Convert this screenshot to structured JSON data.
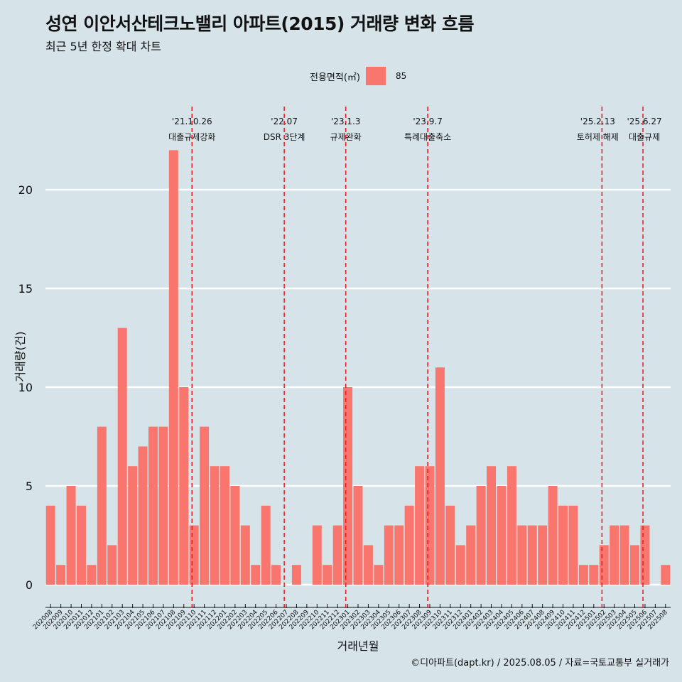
{
  "title": "성연 이안서산테크노밸리 아파트(2015) 거래량 변화 흐름",
  "subtitle": "최근 5년 한정 확대 차트",
  "legend": {
    "title": "전용면적(㎡)",
    "item": "85"
  },
  "source": "©디아파트(dapt.kr) / 2025.08.05 / 자료=국토교통부 실거래가",
  "chart_data": {
    "type": "bar",
    "title": "성연 이안서산테크노밸리 아파트(2015) 거래량 변화 흐름",
    "xlabel": "거래년월",
    "ylabel": "거래량(건)",
    "ylim": [
      0,
      22
    ],
    "yticks": [
      0,
      5,
      10,
      15,
      20
    ],
    "grid": true,
    "legend_position": "top",
    "bar_color": "#f8766d",
    "series": [
      {
        "name": "85"
      }
    ],
    "categories": [
      "202008",
      "202009",
      "202010",
      "202011",
      "202012",
      "202101",
      "202102",
      "202103",
      "202104",
      "202105",
      "202106",
      "202107",
      "202108",
      "202109",
      "202110",
      "202111",
      "202112",
      "202201",
      "202202",
      "202203",
      "202204",
      "202205",
      "202206",
      "202207",
      "202208",
      "202209",
      "202210",
      "202211",
      "202212",
      "202301",
      "202302",
      "202303",
      "202304",
      "202305",
      "202306",
      "202307",
      "202308",
      "202309",
      "202310",
      "202311",
      "202312",
      "202401",
      "202402",
      "202403",
      "202404",
      "202405",
      "202406",
      "202407",
      "202408",
      "202409",
      "202410",
      "202411",
      "202412",
      "202501",
      "202502",
      "202503",
      "202504",
      "202505",
      "202506",
      "202507",
      "202508"
    ],
    "values": [
      4,
      1,
      5,
      4,
      1,
      8,
      2,
      13,
      6,
      7,
      8,
      8,
      22,
      10,
      3,
      8,
      6,
      6,
      5,
      3,
      1,
      4,
      1,
      0,
      1,
      0,
      3,
      1,
      3,
      10,
      5,
      2,
      1,
      3,
      3,
      4,
      6,
      6,
      11,
      4,
      2,
      3,
      5,
      6,
      5,
      6,
      3,
      3,
      3,
      5,
      4,
      4,
      1,
      1,
      2,
      3,
      3,
      2,
      3,
      0,
      1
    ],
    "events": [
      {
        "date": "'21.10.26",
        "label": "대출규제강화",
        "x_index": 14.3
      },
      {
        "date": "'22.07",
        "label": "DSR 3단계",
        "x_index": 23.3
      },
      {
        "date": "'23.1.3",
        "label": "규제완화",
        "x_index": 29.3
      },
      {
        "date": "'23.9.7",
        "label": "특례대출축소",
        "x_index": 37.3
      },
      {
        "date": "'25.2.13",
        "label": "토허제 해제",
        "x_index": 54.3
      },
      {
        "date": "'25.6.27",
        "label": "대출규제",
        "x_index": 58.3
      }
    ],
    "event_line_color": "#e8202a"
  }
}
